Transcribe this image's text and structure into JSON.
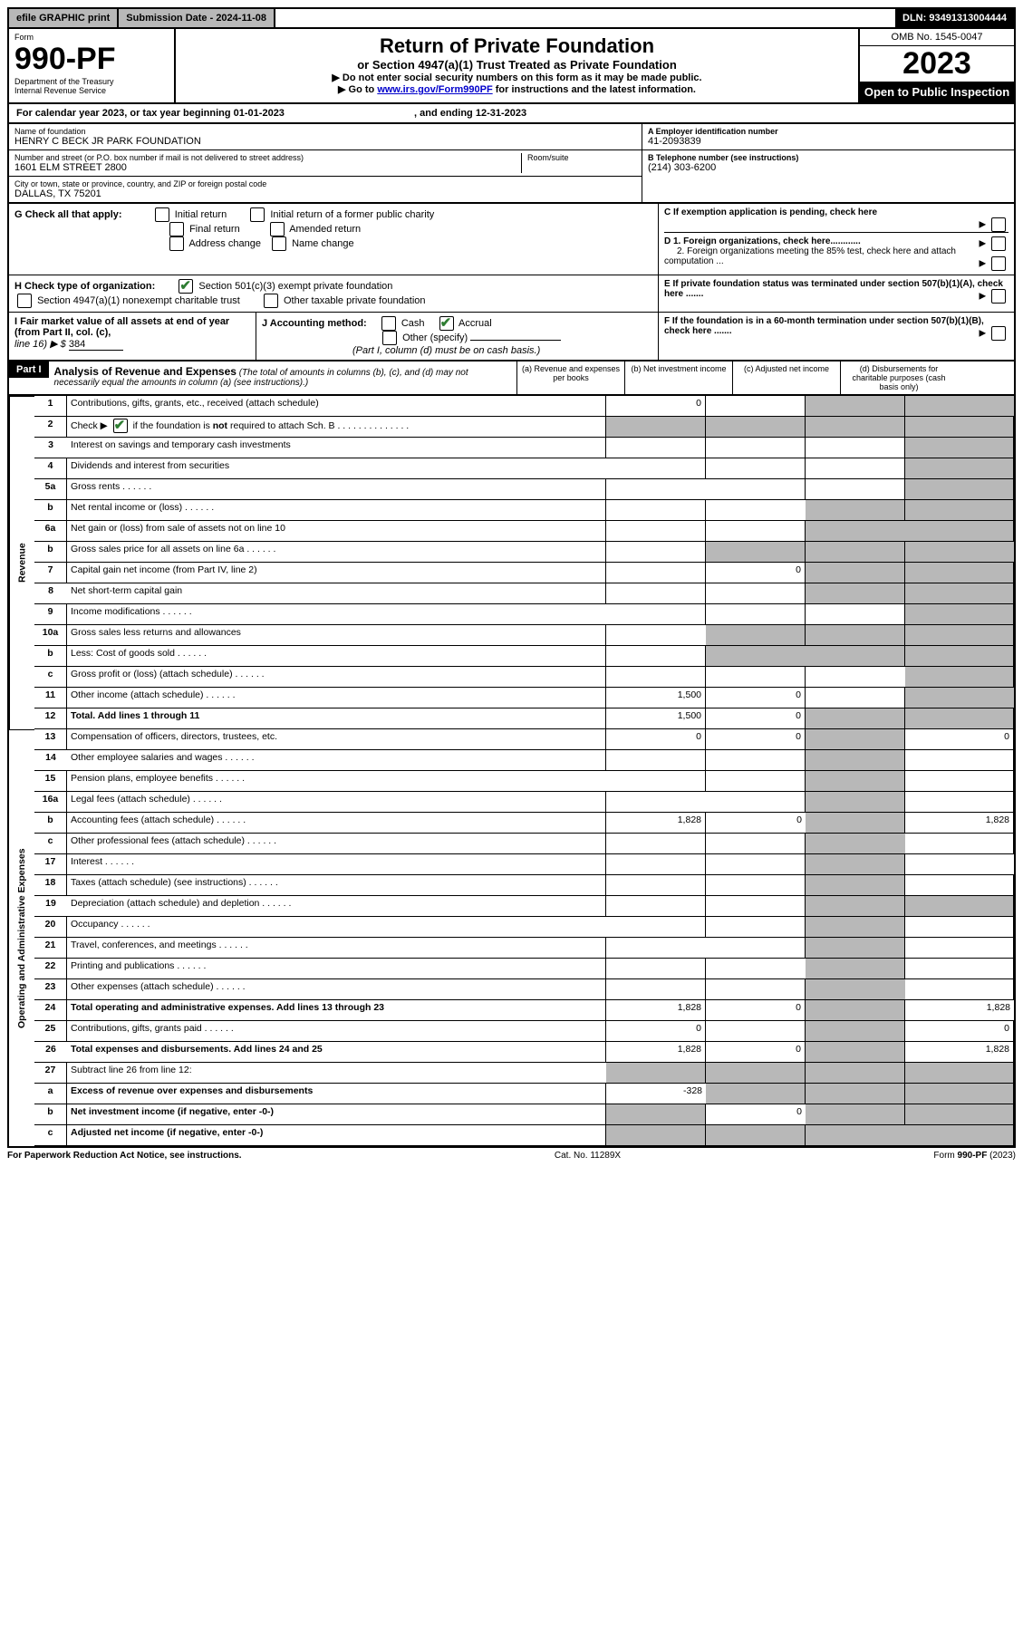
{
  "topbar": {
    "efile": "efile GRAPHIC print",
    "submission_label": "Submission Date - 2024-11-08",
    "dln": "DLN: 93491313004444"
  },
  "header": {
    "form_label": "Form",
    "form_no": "990-PF",
    "dept1": "Department of the Treasury",
    "dept2": "Internal Revenue Service",
    "title": "Return of Private Foundation",
    "subtitle": "or Section 4947(a)(1) Trust Treated as Private Foundation",
    "instr1": "▶ Do not enter social security numbers on this form as it may be made public.",
    "instr2_pre": "▶ Go to ",
    "instr2_link": "www.irs.gov/Form990PF",
    "instr2_post": " for instructions and the latest information.",
    "omb": "OMB No. 1545-0047",
    "year": "2023",
    "open": "Open to Public Inspection"
  },
  "calyear": {
    "text_pre": "For calendar year 2023, or tax year beginning ",
    "begin": "01-01-2023",
    "text_mid": " , and ending ",
    "end": "12-31-2023"
  },
  "name": {
    "label": "Name of foundation",
    "value": "HENRY C BECK JR PARK FOUNDATION"
  },
  "address": {
    "label": "Number and street (or P.O. box number if mail is not delivered to street address)",
    "value": "1601 ELM STREET 2800",
    "room_label": "Room/suite"
  },
  "city": {
    "label": "City or town, state or province, country, and ZIP or foreign postal code",
    "value": "DALLAS, TX  75201"
  },
  "boxA": {
    "label": "A Employer identification number",
    "value": "41-2093839"
  },
  "boxB": {
    "label": "B Telephone number (see instructions)",
    "value": "(214) 303-6200"
  },
  "boxC": {
    "label": "C If exemption application is pending, check here"
  },
  "boxD": {
    "d1": "D 1. Foreign organizations, check here............",
    "d2": "2. Foreign organizations meeting the 85% test, check here and attach computation ..."
  },
  "boxE": {
    "label": "E  If private foundation status was terminated under section 507(b)(1)(A), check here ......."
  },
  "boxF": {
    "label": "F  If the foundation is in a 60-month termination under section 507(b)(1)(B), check here ......."
  },
  "boxG": {
    "label": "G Check all that apply:",
    "o1": "Initial return",
    "o2": "Initial return of a former public charity",
    "o3": "Final return",
    "o4": "Amended return",
    "o5": "Address change",
    "o6": "Name change"
  },
  "boxH": {
    "label": "H Check type of organization:",
    "o1": "Section 501(c)(3) exempt private foundation",
    "o2": "Section 4947(a)(1) nonexempt charitable trust",
    "o3": "Other taxable private foundation"
  },
  "boxI": {
    "label": "I Fair market value of all assets at end of year (from Part II, col. (c),",
    "line16": "line 16) ▶ $",
    "value": "384"
  },
  "boxJ": {
    "label": "J Accounting method:",
    "cash": "Cash",
    "accrual": "Accrual",
    "other": "Other (specify)",
    "note": "(Part I, column (d) must be on cash basis.)"
  },
  "partI": {
    "badge": "Part I",
    "title": "Analysis of Revenue and Expenses",
    "note": "(The total of amounts in columns (b), (c), and (d) may not necessarily equal the amounts in column (a) (see instructions).)",
    "col_a": "(a)  Revenue and expenses per books",
    "col_b": "(b)  Net investment income",
    "col_c": "(c)  Adjusted net income",
    "col_d": "(d)  Disbursements for charitable purposes (cash basis only)"
  },
  "sections": {
    "revenue": "Revenue",
    "opex": "Operating and Administrative Expenses"
  },
  "rows": [
    {
      "n": "1",
      "d": "Contributions, gifts, grants, etc., received (attach schedule)",
      "a": "0"
    },
    {
      "n": "2",
      "d": "Check ▶ ☑ if the foundation is not required to attach Sch. B"
    },
    {
      "n": "3",
      "d": "Interest on savings and temporary cash investments"
    },
    {
      "n": "4",
      "d": "Dividends and interest from securities"
    },
    {
      "n": "5a",
      "d": "Gross rents"
    },
    {
      "n": "b",
      "d": "Net rental income or (loss)"
    },
    {
      "n": "6a",
      "d": "Net gain or (loss) from sale of assets not on line 10"
    },
    {
      "n": "b",
      "d": "Gross sales price for all assets on line 6a"
    },
    {
      "n": "7",
      "d": "Capital gain net income (from Part IV, line 2)",
      "b": "0"
    },
    {
      "n": "8",
      "d": "Net short-term capital gain"
    },
    {
      "n": "9",
      "d": "Income modifications"
    },
    {
      "n": "10a",
      "d": "Gross sales less returns and allowances"
    },
    {
      "n": "b",
      "d": "Less: Cost of goods sold"
    },
    {
      "n": "c",
      "d": "Gross profit or (loss) (attach schedule)"
    },
    {
      "n": "11",
      "d": "Other income (attach schedule)",
      "a": "1,500",
      "b": "0"
    },
    {
      "n": "12",
      "d": "Total. Add lines 1 through 11",
      "a": "1,500",
      "b": "0",
      "bold": true
    },
    {
      "n": "13",
      "d": "Compensation of officers, directors, trustees, etc.",
      "a": "0",
      "b": "0",
      "dv": "0"
    },
    {
      "n": "14",
      "d": "Other employee salaries and wages"
    },
    {
      "n": "15",
      "d": "Pension plans, employee benefits"
    },
    {
      "n": "16a",
      "d": "Legal fees (attach schedule)"
    },
    {
      "n": "b",
      "d": "Accounting fees (attach schedule)",
      "a": "1,828",
      "b": "0",
      "dv": "1,828"
    },
    {
      "n": "c",
      "d": "Other professional fees (attach schedule)"
    },
    {
      "n": "17",
      "d": "Interest"
    },
    {
      "n": "18",
      "d": "Taxes (attach schedule) (see instructions)"
    },
    {
      "n": "19",
      "d": "Depreciation (attach schedule) and depletion"
    },
    {
      "n": "20",
      "d": "Occupancy"
    },
    {
      "n": "21",
      "d": "Travel, conferences, and meetings"
    },
    {
      "n": "22",
      "d": "Printing and publications"
    },
    {
      "n": "23",
      "d": "Other expenses (attach schedule)"
    },
    {
      "n": "24",
      "d": "Total operating and administrative expenses. Add lines 13 through 23",
      "a": "1,828",
      "b": "0",
      "dv": "1,828",
      "bold": true
    },
    {
      "n": "25",
      "d": "Contributions, gifts, grants paid",
      "a": "0",
      "dv": "0"
    },
    {
      "n": "26",
      "d": "Total expenses and disbursements. Add lines 24 and 25",
      "a": "1,828",
      "b": "0",
      "dv": "1,828",
      "bold": true
    },
    {
      "n": "27",
      "d": "Subtract line 26 from line 12:"
    },
    {
      "n": "a",
      "d": "Excess of revenue over expenses and disbursements",
      "a": "-328",
      "bold": true
    },
    {
      "n": "b",
      "d": "Net investment income (if negative, enter -0-)",
      "b": "0",
      "bold": true
    },
    {
      "n": "c",
      "d": "Adjusted net income (if negative, enter -0-)",
      "bold": true
    }
  ],
  "footer": {
    "left": "For Paperwork Reduction Act Notice, see instructions.",
    "center": "Cat. No. 11289X",
    "right": "Form 990-PF (2023)"
  },
  "colors": {
    "shade": "#b8b8b8",
    "check_green": "#2e7d32",
    "link": "#0000cc"
  }
}
